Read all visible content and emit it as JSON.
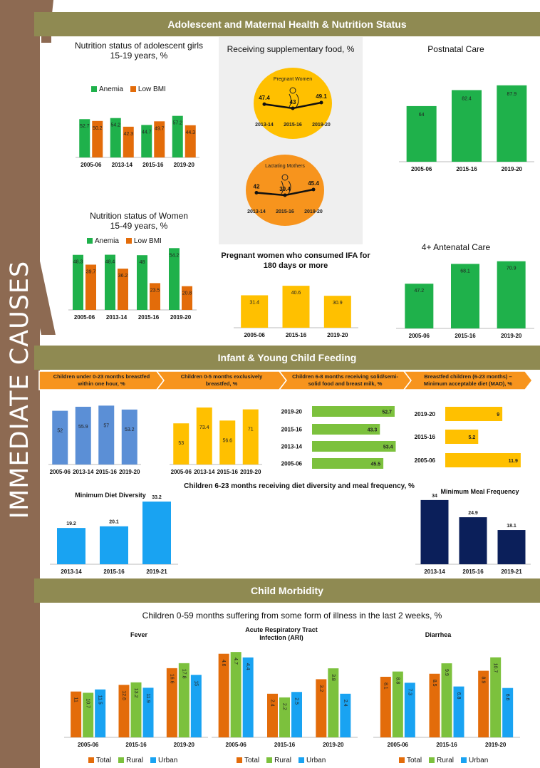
{
  "side_label": "IMMEDIATE CAUSES",
  "sections": {
    "maternal": "Adolescent and Maternal Health & Nutrition Status",
    "iycf": "Infant & Young Child Feeding",
    "morbidity": "Child Morbidity"
  },
  "colors": {
    "band": "#8f8a52",
    "trunk": "#8d6a52",
    "green": "#1fb14b",
    "orange": "#e36c0a",
    "yellow": "#ffc000",
    "blue": "#5b8fd6",
    "lightblue": "#19a3f2",
    "navy": "#0b1f5a",
    "lime": "#7cc13d",
    "circle_yellow": "#ffc000",
    "circle_orange": "#f7941d"
  },
  "chart_data": [
    {
      "id": "adolescent",
      "type": "bar",
      "title": "Nutrition status of adolescent girls\n15-19 years, %",
      "categories": [
        "2005-06",
        "2013-14",
        "2015-16",
        "2019-20"
      ],
      "series": [
        {
          "name": "Anemia",
          "values": [
            52.7,
            54.2,
            44.7,
            57.2
          ]
        },
        {
          "name": "Low BMI",
          "values": [
            50.2,
            42.3,
            49.7,
            44.3
          ]
        }
      ]
    },
    {
      "id": "women",
      "type": "bar",
      "title": "Nutrition status of Women\n15-49 years, %",
      "categories": [
        "2005-06",
        "2013-14",
        "2015-16",
        "2019-20"
      ],
      "series": [
        {
          "name": "Anemia",
          "values": [
            48.3,
            48.4,
            48,
            54.2
          ]
        },
        {
          "name": "Low BMI",
          "values": [
            39.7,
            36.2,
            23.5,
            20.8
          ]
        }
      ]
    },
    {
      "id": "supp",
      "type": "line",
      "title": "Receiving supplementary food, %",
      "panels": [
        {
          "name": "Pregnant Women",
          "categories": [
            "2013-14",
            "2015-16",
            "2019-20"
          ],
          "values": [
            47.4,
            43,
            49.1
          ]
        },
        {
          "name": "Lactating Mothers",
          "categories": [
            "2013-14",
            "2015-16",
            "2019-20"
          ],
          "values": [
            42,
            39.4,
            45.4
          ]
        }
      ]
    },
    {
      "id": "ifa",
      "type": "bar",
      "title": "Pregnant women who consumed IFA for 180 days or more",
      "categories": [
        "2005-06",
        "2015-16",
        "2019-20"
      ],
      "values": [
        31.4,
        40.6,
        30.9
      ]
    },
    {
      "id": "pnc",
      "type": "bar",
      "title": "Postnatal Care",
      "categories": [
        "2005-06",
        "2015-16",
        "2019-20"
      ],
      "values": [
        64,
        82.4,
        87.9
      ]
    },
    {
      "id": "anc",
      "type": "bar",
      "title": "4+ Antenatal Care",
      "categories": [
        "2005-06",
        "2015-16",
        "2019-20"
      ],
      "values": [
        47.2,
        68.1,
        70.9
      ]
    },
    {
      "id": "bf1h",
      "type": "bar",
      "title": "Children under 0-23 months breastfed within one hour, %",
      "categories": [
        "2005-06",
        "2013-14",
        "2015-16",
        "2019-20"
      ],
      "values": [
        52,
        55.9,
        57,
        53.2
      ]
    },
    {
      "id": "ebf",
      "type": "bar",
      "title": "Children 0-5 months exclusively breastfed, %",
      "categories": [
        "2005-06",
        "2013-14",
        "2015-16",
        "2019-20"
      ],
      "values": [
        53,
        73.4,
        56.6,
        71
      ]
    },
    {
      "id": "cf",
      "type": "bar",
      "orientation": "horizontal",
      "title": "Children 6-8 months receiving solid/semi-solid food and breast milk, %",
      "categories": [
        "2019-20",
        "2015-16",
        "2013-14",
        "2005-06"
      ],
      "values": [
        52.7,
        43.3,
        53.4,
        45.5
      ]
    },
    {
      "id": "mad",
      "type": "bar",
      "orientation": "horizontal",
      "title": "Breastfed children (6-23 months) – Minimum acceptable diet (MAD), %",
      "categories": [
        "2019-20",
        "2015-16",
        "2005-06"
      ],
      "values": [
        9,
        5.2,
        11.9
      ]
    },
    {
      "id": "mdd",
      "type": "bar",
      "title": "Minimum Diet Diversity",
      "categories": [
        "2013-14",
        "2015-16",
        "2019-21"
      ],
      "values": [
        19.2,
        20.1,
        33.2
      ]
    },
    {
      "id": "mmf",
      "type": "bar",
      "title": "Minimum Meal Frequency",
      "categories": [
        "2013-14",
        "2015-16",
        "2019-21"
      ],
      "values": [
        34,
        24.9,
        18.1
      ]
    },
    {
      "id": "fever",
      "type": "bar",
      "title": "Fever",
      "categories": [
        "2005-06",
        "2015-16",
        "2019-20"
      ],
      "series": [
        {
          "name": "Total",
          "values": [
            11,
            12.6,
            16.6
          ]
        },
        {
          "name": "Rural",
          "values": [
            10.7,
            13.2,
            17.8
          ]
        },
        {
          "name": "Urban",
          "values": [
            11.5,
            11.9,
            15
          ]
        }
      ]
    },
    {
      "id": "ari",
      "type": "bar",
      "title": "Acute Respiratory Tract\nInfection (ARI)",
      "categories": [
        "2005-06",
        "2015-16",
        "2019-20"
      ],
      "series": [
        {
          "name": "Total",
          "values": [
            4.6,
            2.4,
            3.2
          ]
        },
        {
          "name": "Rural",
          "values": [
            4.7,
            2.2,
            3.8
          ]
        },
        {
          "name": "Urban",
          "values": [
            4.4,
            2.5,
            2.4
          ]
        }
      ]
    },
    {
      "id": "diarrhea",
      "type": "bar",
      "title": "Diarrhea",
      "categories": [
        "2005-06",
        "2015-16",
        "2019-20"
      ],
      "series": [
        {
          "name": "Total",
          "values": [
            8.1,
            8.5,
            8.9
          ]
        },
        {
          "name": "Rural",
          "values": [
            8.8,
            9.9,
            10.7
          ]
        },
        {
          "name": "Urban",
          "values": [
            7.3,
            6.8,
            6.6
          ]
        }
      ]
    }
  ],
  "texts": {
    "dd_mf_title": "Children 6-23 months receiving  diet diversity and meal frequency, %",
    "illness_title": "Children 0-59 months suffering from some form of illness in the last 2 weeks, %",
    "arrows": [
      "Children under 0-23 months breastfed\nwithin one hour, %",
      "Children 0-5 months exclusively\nbreastfed, %",
      "Children 6-8 months receiving solid/semi-\nsolid food and breast milk, %",
      "Breastfed children (6-23 months) –\nMinimum acceptable diet (MAD), %"
    ]
  },
  "icons": {
    "pregnant": "pregnant-woman-icon",
    "lactating": "mother-child-icon"
  }
}
